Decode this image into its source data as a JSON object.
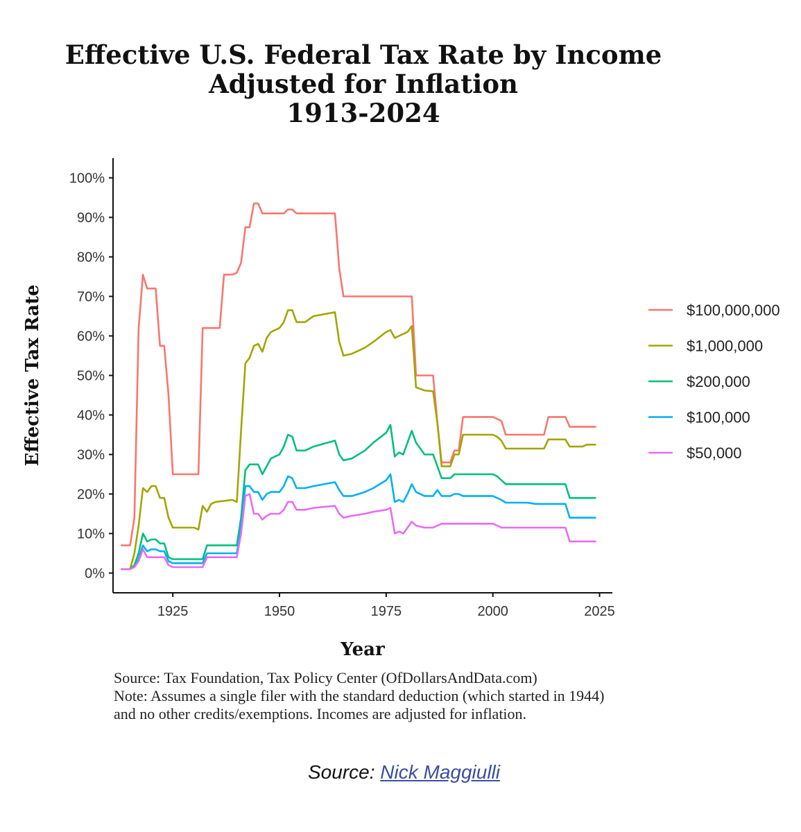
{
  "chart_data": {
    "type": "line",
    "title": [
      "Effective U.S. Federal Tax Rate by Income",
      "Adjusted for Inflation",
      "1913-2024"
    ],
    "xlabel": "Year",
    "ylabel": "Effective Tax Rate",
    "xlim": [
      1911,
      2028
    ],
    "ylim": [
      -0.05,
      1.05
    ],
    "xticks": [
      1925,
      1950,
      1975,
      2000,
      2025
    ],
    "xtick_labels": [
      "1925",
      "1950",
      "1975",
      "2000",
      "2025"
    ],
    "yticks": [
      0,
      0.1,
      0.2,
      0.3,
      0.4,
      0.5,
      0.6,
      0.7,
      0.8,
      0.9,
      1.0
    ],
    "ytick_labels": [
      "0%",
      "10%",
      "20%",
      "30%",
      "40%",
      "50%",
      "60%",
      "70%",
      "80%",
      "90%",
      "100%"
    ],
    "grid": false,
    "legend_position": "right",
    "series": [
      {
        "name": "$100,000,000",
        "color": "#f8766d",
        "x": [
          1913,
          1915,
          1916,
          1917,
          1918,
          1919,
          1920,
          1921,
          1922,
          1923,
          1924,
          1925,
          1926,
          1930,
          1931,
          1932,
          1933,
          1935,
          1936,
          1937,
          1939,
          1940,
          1941,
          1942,
          1943,
          1944,
          1945,
          1946,
          1948,
          1950,
          1951,
          1952,
          1953,
          1954,
          1955,
          1963,
          1964,
          1965,
          1975,
          1981,
          1982,
          1986,
          1987,
          1988,
          1990,
          1991,
          1992,
          1993,
          2000,
          2001,
          2002,
          2003,
          2012,
          2013,
          2017,
          2018,
          2024
        ],
        "y": [
          0.07,
          0.07,
          0.14,
          0.62,
          0.755,
          0.72,
          0.72,
          0.72,
          0.575,
          0.575,
          0.45,
          0.25,
          0.25,
          0.25,
          0.25,
          0.62,
          0.62,
          0.62,
          0.62,
          0.755,
          0.755,
          0.76,
          0.785,
          0.875,
          0.875,
          0.935,
          0.935,
          0.91,
          0.91,
          0.91,
          0.91,
          0.92,
          0.92,
          0.91,
          0.91,
          0.91,
          0.77,
          0.7,
          0.7,
          0.7,
          0.5,
          0.5,
          0.38,
          0.28,
          0.28,
          0.31,
          0.31,
          0.395,
          0.395,
          0.39,
          0.385,
          0.35,
          0.35,
          0.395,
          0.395,
          0.37,
          0.37
        ]
      },
      {
        "name": "$1,000,000",
        "color": "#a3a500",
        "x": [
          1913,
          1915,
          1916,
          1917,
          1918,
          1919,
          1920,
          1921,
          1922,
          1923,
          1924,
          1925,
          1926,
          1929,
          1930,
          1931,
          1932,
          1933,
          1934,
          1935,
          1939,
          1940,
          1941,
          1942,
          1943,
          1944,
          1945,
          1946,
          1947,
          1948,
          1950,
          1951,
          1952,
          1953,
          1954,
          1956,
          1958,
          1963,
          1964,
          1965,
          1967,
          1970,
          1972,
          1975,
          1976,
          1977,
          1978,
          1980,
          1981,
          1982,
          1984,
          1986,
          1987,
          1988,
          1990,
          1991,
          1992,
          1993,
          2000,
          2001,
          2002,
          2003,
          2008,
          2010,
          2012,
          2013,
          2017,
          2018,
          2021,
          2022,
          2024
        ],
        "y": [
          0.01,
          0.01,
          0.05,
          0.12,
          0.215,
          0.205,
          0.22,
          0.22,
          0.19,
          0.19,
          0.14,
          0.115,
          0.115,
          0.115,
          0.115,
          0.11,
          0.17,
          0.155,
          0.175,
          0.18,
          0.185,
          0.18,
          0.36,
          0.53,
          0.545,
          0.575,
          0.58,
          0.56,
          0.595,
          0.61,
          0.62,
          0.635,
          0.665,
          0.665,
          0.635,
          0.635,
          0.65,
          0.66,
          0.585,
          0.55,
          0.555,
          0.57,
          0.585,
          0.61,
          0.615,
          0.595,
          0.6,
          0.61,
          0.625,
          0.47,
          0.462,
          0.46,
          0.38,
          0.27,
          0.27,
          0.3,
          0.3,
          0.35,
          0.35,
          0.345,
          0.335,
          0.315,
          0.315,
          0.315,
          0.315,
          0.338,
          0.338,
          0.32,
          0.32,
          0.325,
          0.325
        ]
      },
      {
        "name": "$200,000",
        "color": "#00bf7d",
        "x": [
          1913,
          1915,
          1916,
          1917,
          1918,
          1919,
          1920,
          1921,
          1922,
          1923,
          1924,
          1925,
          1926,
          1930,
          1931,
          1932,
          1933,
          1935,
          1940,
          1941,
          1942,
          1943,
          1944,
          1945,
          1946,
          1947,
          1948,
          1950,
          1951,
          1952,
          1953,
          1954,
          1956,
          1958,
          1963,
          1964,
          1965,
          1967,
          1970,
          1972,
          1975,
          1976,
          1977,
          1978,
          1979,
          1980,
          1981,
          1982,
          1984,
          1986,
          1987,
          1988,
          1990,
          1991,
          1992,
          1993,
          2000,
          2001,
          2002,
          2003,
          2008,
          2010,
          2017,
          2018,
          2021,
          2022,
          2024
        ],
        "y": [
          0.01,
          0.01,
          0.02,
          0.05,
          0.1,
          0.08,
          0.085,
          0.085,
          0.075,
          0.075,
          0.04,
          0.035,
          0.035,
          0.035,
          0.035,
          0.035,
          0.07,
          0.07,
          0.07,
          0.14,
          0.26,
          0.275,
          0.275,
          0.275,
          0.25,
          0.27,
          0.29,
          0.3,
          0.32,
          0.35,
          0.345,
          0.31,
          0.31,
          0.32,
          0.335,
          0.3,
          0.285,
          0.29,
          0.31,
          0.33,
          0.355,
          0.375,
          0.295,
          0.305,
          0.3,
          0.33,
          0.36,
          0.33,
          0.3,
          0.3,
          0.27,
          0.24,
          0.24,
          0.25,
          0.25,
          0.25,
          0.25,
          0.245,
          0.235,
          0.225,
          0.225,
          0.225,
          0.225,
          0.19,
          0.19,
          0.19,
          0.19
        ]
      },
      {
        "name": "$100,000",
        "color": "#00b0f6",
        "x": [
          1913,
          1915,
          1916,
          1917,
          1918,
          1919,
          1920,
          1921,
          1922,
          1923,
          1924,
          1925,
          1926,
          1930,
          1931,
          1932,
          1933,
          1935,
          1940,
          1941,
          1942,
          1943,
          1944,
          1945,
          1946,
          1947,
          1948,
          1950,
          1951,
          1952,
          1953,
          1954,
          1956,
          1958,
          1963,
          1964,
          1965,
          1967,
          1970,
          1972,
          1975,
          1976,
          1977,
          1978,
          1979,
          1980,
          1981,
          1982,
          1984,
          1986,
          1987,
          1988,
          1990,
          1991,
          1992,
          1993,
          2000,
          2001,
          2002,
          2003,
          2008,
          2010,
          2017,
          2018,
          2021,
          2022,
          2024
        ],
        "y": [
          0.01,
          0.01,
          0.015,
          0.035,
          0.07,
          0.055,
          0.06,
          0.06,
          0.055,
          0.055,
          0.03,
          0.025,
          0.025,
          0.025,
          0.025,
          0.025,
          0.05,
          0.05,
          0.05,
          0.12,
          0.22,
          0.22,
          0.205,
          0.205,
          0.185,
          0.2,
          0.205,
          0.205,
          0.22,
          0.245,
          0.24,
          0.215,
          0.215,
          0.22,
          0.23,
          0.21,
          0.195,
          0.195,
          0.205,
          0.215,
          0.235,
          0.25,
          0.18,
          0.185,
          0.18,
          0.2,
          0.225,
          0.205,
          0.195,
          0.195,
          0.21,
          0.195,
          0.195,
          0.2,
          0.2,
          0.195,
          0.195,
          0.19,
          0.185,
          0.178,
          0.178,
          0.175,
          0.175,
          0.14,
          0.14,
          0.14,
          0.14
        ]
      },
      {
        "name": "$50,000",
        "color": "#e76bf3",
        "x": [
          1913,
          1915,
          1916,
          1917,
          1918,
          1919,
          1920,
          1921,
          1922,
          1923,
          1924,
          1925,
          1926,
          1930,
          1931,
          1932,
          1933,
          1935,
          1940,
          1941,
          1942,
          1943,
          1944,
          1945,
          1946,
          1947,
          1948,
          1950,
          1951,
          1952,
          1953,
          1954,
          1956,
          1958,
          1963,
          1964,
          1965,
          1967,
          1970,
          1972,
          1975,
          1976,
          1977,
          1978,
          1979,
          1980,
          1981,
          1982,
          1984,
          1986,
          1987,
          1988,
          1990,
          1991,
          1992,
          1993,
          2000,
          2001,
          2002,
          2003,
          2008,
          2010,
          2017,
          2018,
          2021,
          2022,
          2024
        ],
        "y": [
          0.01,
          0.01,
          0.015,
          0.03,
          0.06,
          0.04,
          0.04,
          0.04,
          0.04,
          0.04,
          0.02,
          0.015,
          0.015,
          0.015,
          0.015,
          0.015,
          0.04,
          0.04,
          0.04,
          0.1,
          0.195,
          0.2,
          0.15,
          0.15,
          0.135,
          0.145,
          0.15,
          0.15,
          0.16,
          0.18,
          0.18,
          0.16,
          0.16,
          0.165,
          0.17,
          0.15,
          0.14,
          0.145,
          0.15,
          0.155,
          0.16,
          0.165,
          0.1,
          0.105,
          0.1,
          0.115,
          0.13,
          0.12,
          0.115,
          0.115,
          0.12,
          0.125,
          0.125,
          0.125,
          0.125,
          0.125,
          0.125,
          0.12,
          0.115,
          0.115,
          0.115,
          0.115,
          0.115,
          0.08,
          0.08,
          0.08,
          0.08
        ]
      }
    ]
  },
  "footnotes": {
    "source": "Source: Tax Foundation, Tax Policy Center (OfDollarsAndData.com)",
    "note_line1": "Note: Assumes a single filer with the standard deduction (which started in 1944)",
    "note_line2": "and no other credits/exemptions. Incomes are adjusted for inflation."
  },
  "credit": {
    "prefix": "Source: ",
    "link_text": "Nick Maggiulli"
  }
}
